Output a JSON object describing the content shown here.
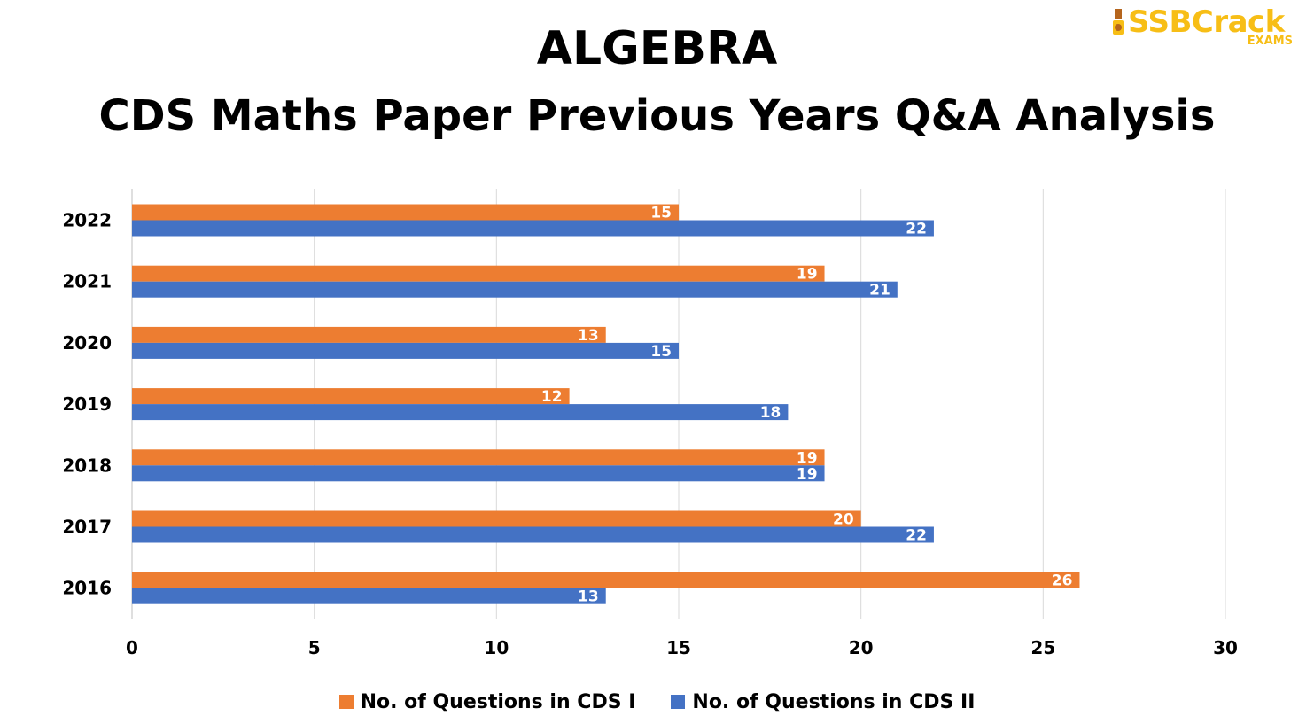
{
  "title": "ALGEBRA",
  "subtitle": "CDS Maths Paper Previous Years Q&A Analysis",
  "logo": {
    "text": "SSBCrack",
    "subtext": "EXAMS",
    "color": "#f7be16"
  },
  "chart_data": {
    "type": "bar",
    "orientation": "horizontal",
    "categories": [
      "2016",
      "2017",
      "2018",
      "2019",
      "2020",
      "2021",
      "2022"
    ],
    "series": [
      {
        "name": "No. of Questions in CDS I",
        "color": "#ed7d31",
        "values": [
          26,
          20,
          19,
          12,
          13,
          19,
          15
        ]
      },
      {
        "name": "No. of Questions in CDS II",
        "color": "#4472c4",
        "values": [
          13,
          22,
          19,
          18,
          15,
          21,
          22
        ]
      }
    ],
    "xlim": [
      0,
      30
    ],
    "xticks": [
      0,
      5,
      10,
      15,
      20,
      25,
      30
    ],
    "grid": "vertical",
    "legend": "bottom",
    "data_labels": true
  }
}
